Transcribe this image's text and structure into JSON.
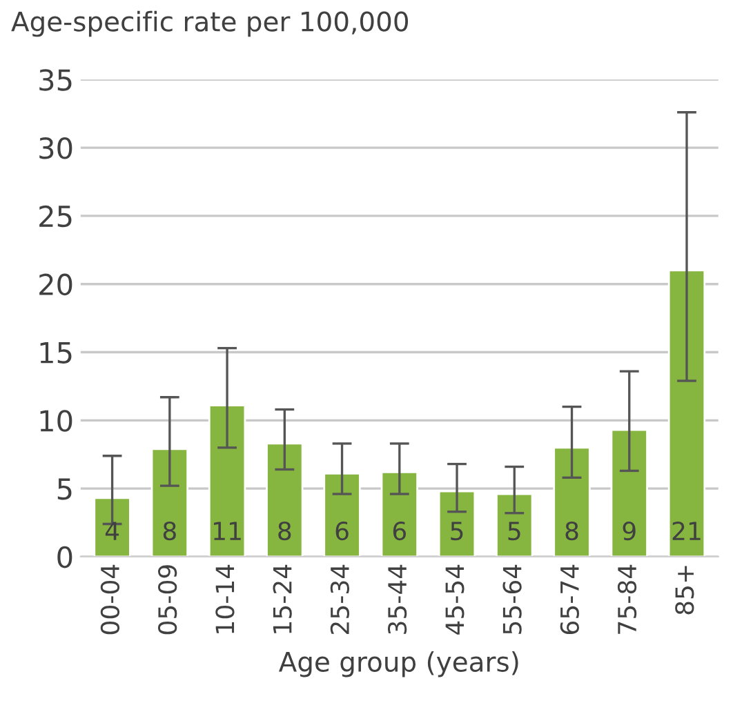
{
  "chart_data": {
    "type": "bar",
    "ylabel": "Age-specific rate per 100,000",
    "xlabel": "Age group (years)",
    "categories": [
      "00-04",
      "05-09",
      "10-14",
      "15-24",
      "25-34",
      "35-44",
      "45-54",
      "55-64",
      "65-74",
      "75-84",
      "85+"
    ],
    "values": [
      4.3,
      7.9,
      11.1,
      8.3,
      6.1,
      6.2,
      4.8,
      4.6,
      8.0,
      9.3,
      21.0
    ],
    "errors": [
      [
        2.4,
        7.4
      ],
      [
        5.2,
        11.7
      ],
      [
        8.0,
        15.3
      ],
      [
        6.4,
        10.8
      ],
      [
        4.6,
        8.3
      ],
      [
        4.6,
        8.3
      ],
      [
        3.3,
        6.8
      ],
      [
        3.2,
        6.6
      ],
      [
        5.8,
        11.0
      ],
      [
        6.3,
        13.6
      ],
      [
        12.9,
        32.6
      ]
    ],
    "value_labels": [
      "4",
      "8",
      "11",
      "8",
      "6",
      "6",
      "5",
      "5",
      "8",
      "9",
      "21"
    ],
    "color": "#86b540",
    "ylim": [
      0,
      35
    ],
    "yticks": [
      0,
      5,
      10,
      15,
      20,
      25,
      30,
      35
    ],
    "grid": "y"
  }
}
